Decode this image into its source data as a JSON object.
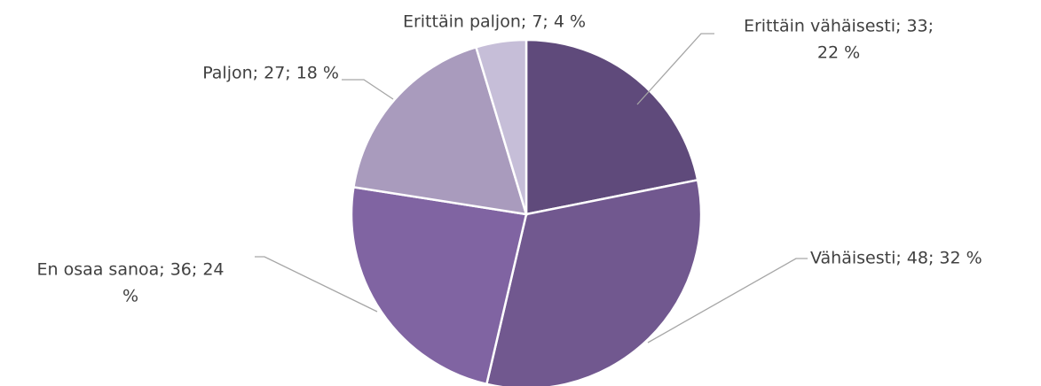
{
  "chart_data": {
    "type": "pie",
    "values": [
      33,
      48,
      36,
      27,
      7
    ],
    "value_labels": [
      [
        "Erittäin vähäisesti; 33;",
        "22 %"
      ],
      [
        "Vähäisesti; 48; 32 %"
      ],
      [
        "En osaa sanoa; 36; 24",
        "%"
      ],
      [
        "Paljon; 27; 18 %"
      ],
      [
        "Erittäin paljon; 7; 4 %"
      ]
    ],
    "colors": [
      "#5f4a7b",
      "#71588f",
      "#8064a2",
      "#a99bbd",
      "#c6bed8"
    ]
  }
}
